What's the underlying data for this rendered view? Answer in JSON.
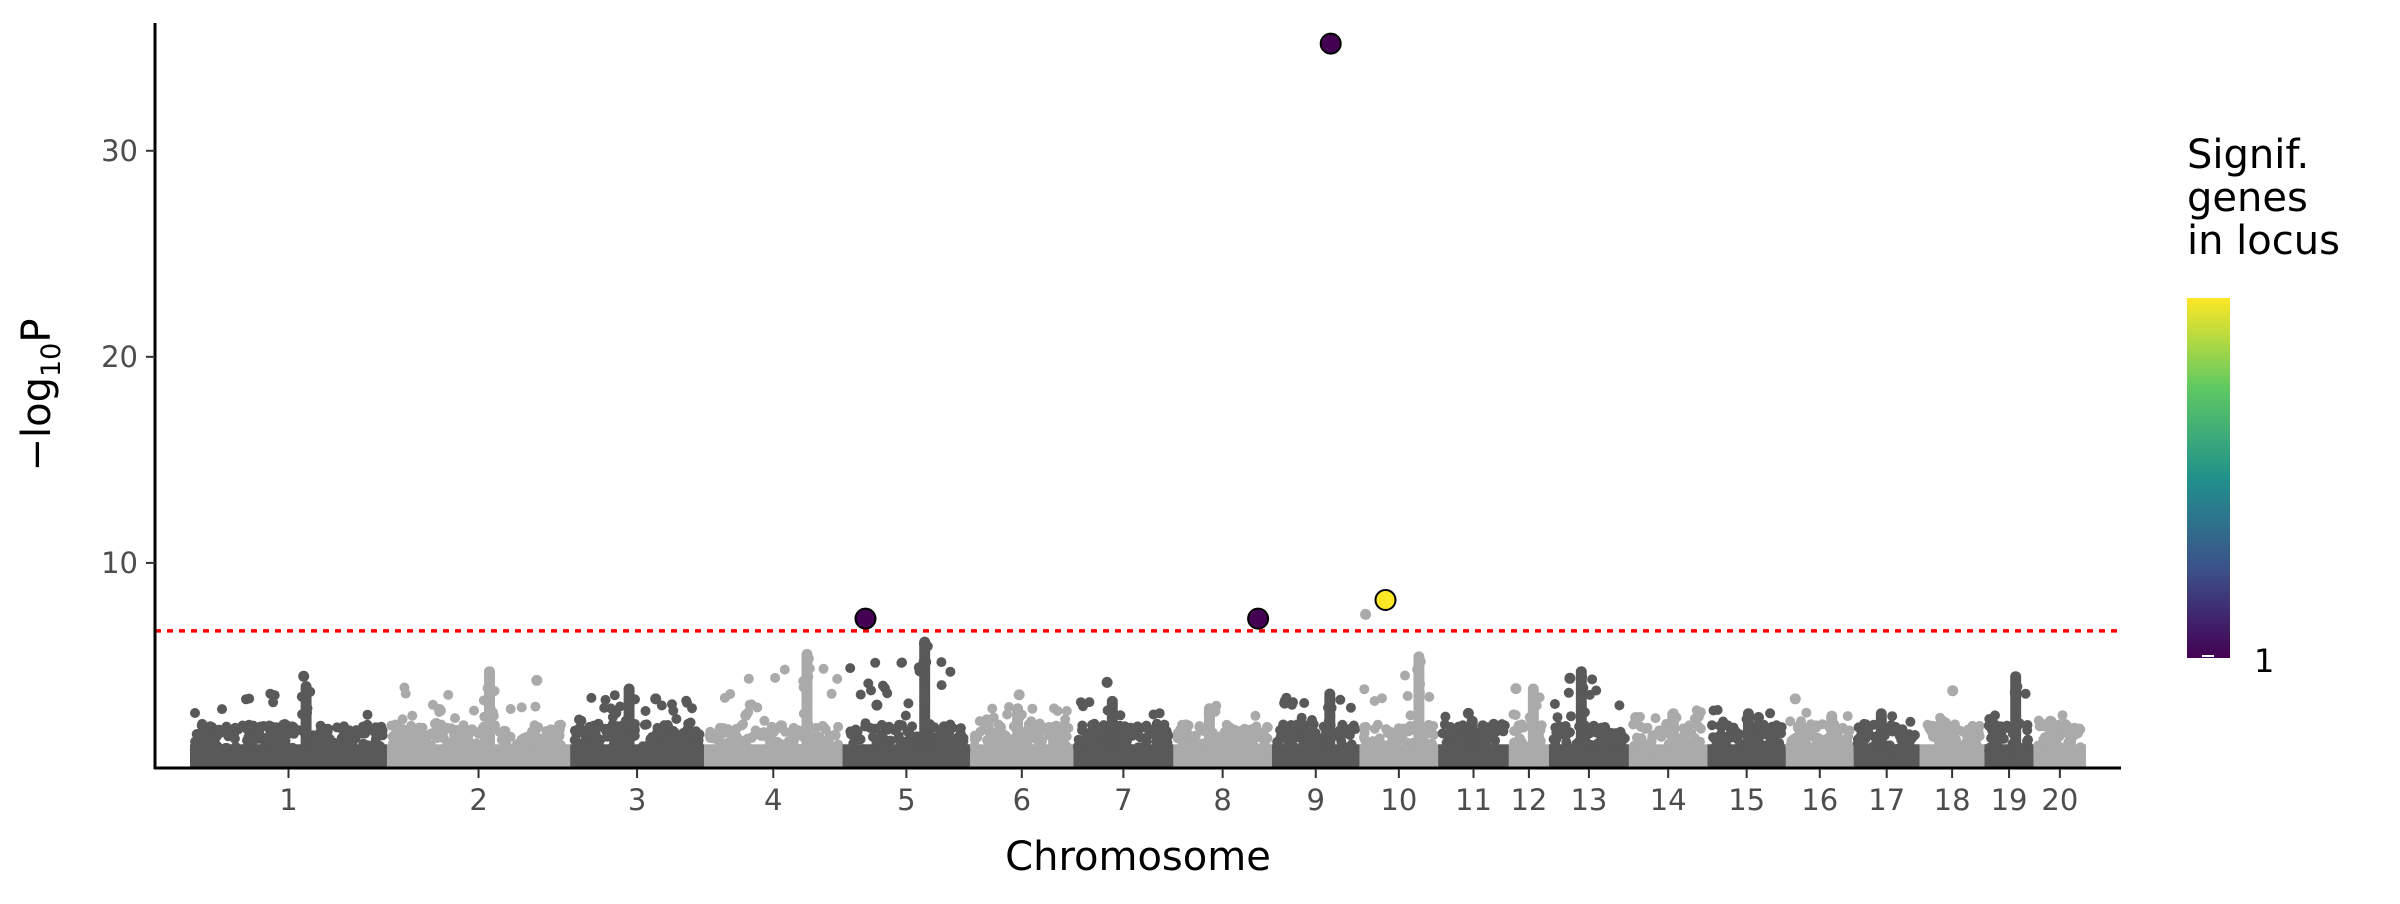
{
  "chart_data": {
    "type": "scatter",
    "subtype": "manhattan",
    "xlabel": "Chromosome",
    "ylabel_prefix": "−log",
    "ylabel_sub": "10",
    "ylabel_suffix": "P",
    "ylim": [
      0,
      36.2
    ],
    "yticks": [
      10,
      20,
      30
    ],
    "significance_threshold": 6.7,
    "threshold_color": "#ff0000",
    "band_colors": [
      "#595959",
      "#aaaaaa"
    ],
    "chromosomes": [
      {
        "label": "1",
        "length": 128,
        "peak": 4.1,
        "outlier": 4.5
      },
      {
        "label": "2",
        "length": 119,
        "peak": 4.8,
        "outlier": 4.3
      },
      {
        "label": "3",
        "length": 87,
        "peak": 4.0,
        "outlier": 3.4
      },
      {
        "label": "4",
        "length": 90,
        "peak": 5.6,
        "outlier": 2.6
      },
      {
        "label": "5",
        "length": 83,
        "peak": 6.2,
        "outlier": 3.1
      },
      {
        "label": "6",
        "length": 67,
        "peak": 3.0,
        "outlier": 3.6
      },
      {
        "label": "7",
        "length": 65,
        "peak": 3.4,
        "outlier": 4.2
      },
      {
        "label": "8",
        "length": 64,
        "peak": 3.0,
        "outlier": 2.8
      },
      {
        "label": "9",
        "length": 57,
        "peak": 3.7,
        "outlier": 3.2
      },
      {
        "label": "10",
        "length": 51,
        "peak": 5.5,
        "outlier": 7.5
      },
      {
        "label": "11",
        "length": 46,
        "peak": 2.4,
        "outlier": 2.7
      },
      {
        "label": "12",
        "length": 26,
        "peak": 3.9,
        "outlier": 3.9
      },
      {
        "label": "13",
        "length": 52,
        "peak": 4.8,
        "outlier": 4.4
      },
      {
        "label": "14",
        "length": 51,
        "peak": 2.8,
        "outlier": 2.5
      },
      {
        "label": "15",
        "length": 51,
        "peak": 2.7,
        "outlier": 2.5
      },
      {
        "label": "16",
        "length": 44,
        "peak": 2.6,
        "outlier": 3.4
      },
      {
        "label": "17",
        "length": 43,
        "peak": 2.7,
        "outlier": 2.0
      },
      {
        "label": "18",
        "length": 42,
        "peak": 2.4,
        "outlier": 3.8
      },
      {
        "label": "19",
        "length": 32,
        "peak": 4.6,
        "outlier": 2.2
      },
      {
        "label": "20",
        "length": 34,
        "peak": 2.4,
        "outlier": 2.2
      }
    ],
    "highlighted_loci": [
      {
        "chromosome": "5",
        "relative_position": 0.18,
        "value": 7.3,
        "signif_genes": 1,
        "color": "#440154"
      },
      {
        "chromosome": "8",
        "relative_position": 0.86,
        "value": 7.3,
        "signif_genes": 1,
        "color": "#440154"
      },
      {
        "chromosome": "9",
        "relative_position": 0.67,
        "value": 35.2,
        "signif_genes": 1,
        "color": "#440154"
      },
      {
        "chromosome": "10",
        "relative_position": 0.33,
        "value": 8.2,
        "signif_genes": 2,
        "color": "#fde725"
      }
    ],
    "legend": {
      "title_lines": [
        "Signif.",
        "genes",
        "in locus"
      ],
      "tick_label": "1",
      "colormap": [
        "#440154",
        "#3b528b",
        "#21918c",
        "#5ec962",
        "#fde725"
      ],
      "placement": "right"
    }
  }
}
